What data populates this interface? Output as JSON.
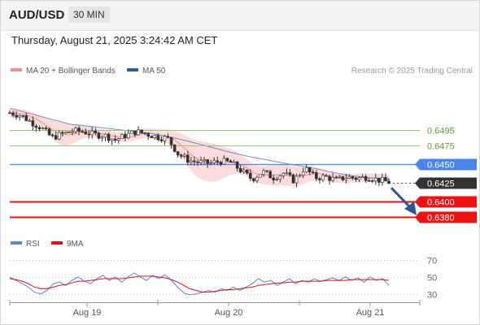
{
  "header": {
    "symbol": "AUD/USD",
    "interval": "30 MIN"
  },
  "timestamp": "Thursday, August 21, 2025 3:24:42 AM CET",
  "legend": {
    "items": [
      {
        "label": "MA 20 + Bollinger Bands",
        "color": "#f28b8b"
      },
      {
        "label": "MA 50",
        "color": "#2e5b9c"
      }
    ],
    "credit": "Research © 2025 Trading Central"
  },
  "rsi_legend": {
    "items": [
      {
        "label": "RSI",
        "color": "#5b84d6"
      },
      {
        "label": "9MA",
        "color": "#e01010"
      }
    ]
  },
  "colors": {
    "resistance_green": "#8fca6e",
    "pivot_blue": "#4a86e8",
    "support_red": "#ee1111",
    "current_price": "#333333",
    "bollinger_fill": "#fbd5d5",
    "arrow": "#2f5597"
  },
  "chart_data": [
    {
      "type": "candlestick",
      "name": "price",
      "y_range": [
        0.6366,
        0.6549
      ],
      "x_ticks": [
        "Aug 19",
        "Aug 20",
        "Aug 21"
      ],
      "levels": [
        {
          "label": "0.6495",
          "value": 0.6495,
          "kind": "resistance"
        },
        {
          "label": "0.6475",
          "value": 0.6475,
          "kind": "resistance"
        },
        {
          "label": "0.6450",
          "value": 0.645,
          "kind": "pivot"
        },
        {
          "label": "0.6425",
          "value": 0.6425,
          "kind": "current"
        },
        {
          "label": "0.6400",
          "value": 0.64,
          "kind": "support"
        },
        {
          "label": "0.6380",
          "value": 0.638,
          "kind": "support"
        }
      ],
      "ohlc_path": [
        0.6518,
        0.6515,
        0.6506,
        0.6498,
        0.6485,
        0.649,
        0.6494,
        0.6493,
        0.6489,
        0.6488,
        0.6482,
        0.6488,
        0.6493,
        0.649,
        0.6486,
        0.6484,
        0.6463,
        0.6455,
        0.6452,
        0.6451,
        0.6454,
        0.6452,
        0.6441,
        0.643,
        0.644,
        0.6432,
        0.6438,
        0.6428,
        0.6445,
        0.6432,
        0.6433,
        0.6429,
        0.6433,
        0.6431,
        0.6433,
        0.6429,
        0.6426
      ],
      "ma50_path": [
        0.6524,
        0.6517,
        0.651,
        0.6503,
        0.65,
        0.6497,
        0.6494,
        0.6491,
        0.6486,
        0.648,
        0.6473,
        0.6466,
        0.646,
        0.6455,
        0.645,
        0.6446,
        0.644,
        0.6435,
        0.6432,
        0.643
      ],
      "forecast": {
        "from": 0.6425,
        "to": 0.638
      }
    },
    {
      "type": "line",
      "name": "oscillator",
      "y_range": [
        20,
        78
      ],
      "y_ticks": [
        70,
        50,
        30
      ],
      "series": [
        {
          "name": "RSI",
          "values": [
            50,
            46,
            42,
            38,
            32,
            30,
            34,
            42,
            44,
            40,
            46,
            50,
            45,
            42,
            48,
            52,
            46,
            50,
            44,
            50,
            55,
            50,
            46,
            52,
            48,
            53,
            46,
            38,
            31,
            29,
            30,
            32,
            34,
            32,
            36,
            34,
            38,
            34,
            38,
            42,
            48,
            44,
            46,
            40,
            44,
            48,
            42,
            46,
            44,
            48,
            45,
            47,
            49,
            46,
            50,
            46,
            49,
            44,
            50,
            46,
            48,
            40
          ]
        },
        {
          "name": "9MA",
          "values": [
            48,
            47,
            45,
            42,
            38,
            36,
            36,
            38,
            40,
            41,
            43,
            45,
            45,
            46,
            47,
            48,
            48,
            48,
            48,
            49,
            50,
            51,
            51,
            51,
            50,
            49,
            47,
            44,
            40,
            36,
            34,
            32,
            32,
            33,
            34,
            35,
            35,
            36,
            37,
            38,
            40,
            41,
            42,
            43,
            43,
            44,
            44,
            45,
            45,
            45,
            45,
            46,
            46,
            46,
            46,
            47,
            47,
            47,
            47,
            47,
            47,
            46
          ]
        }
      ]
    }
  ]
}
